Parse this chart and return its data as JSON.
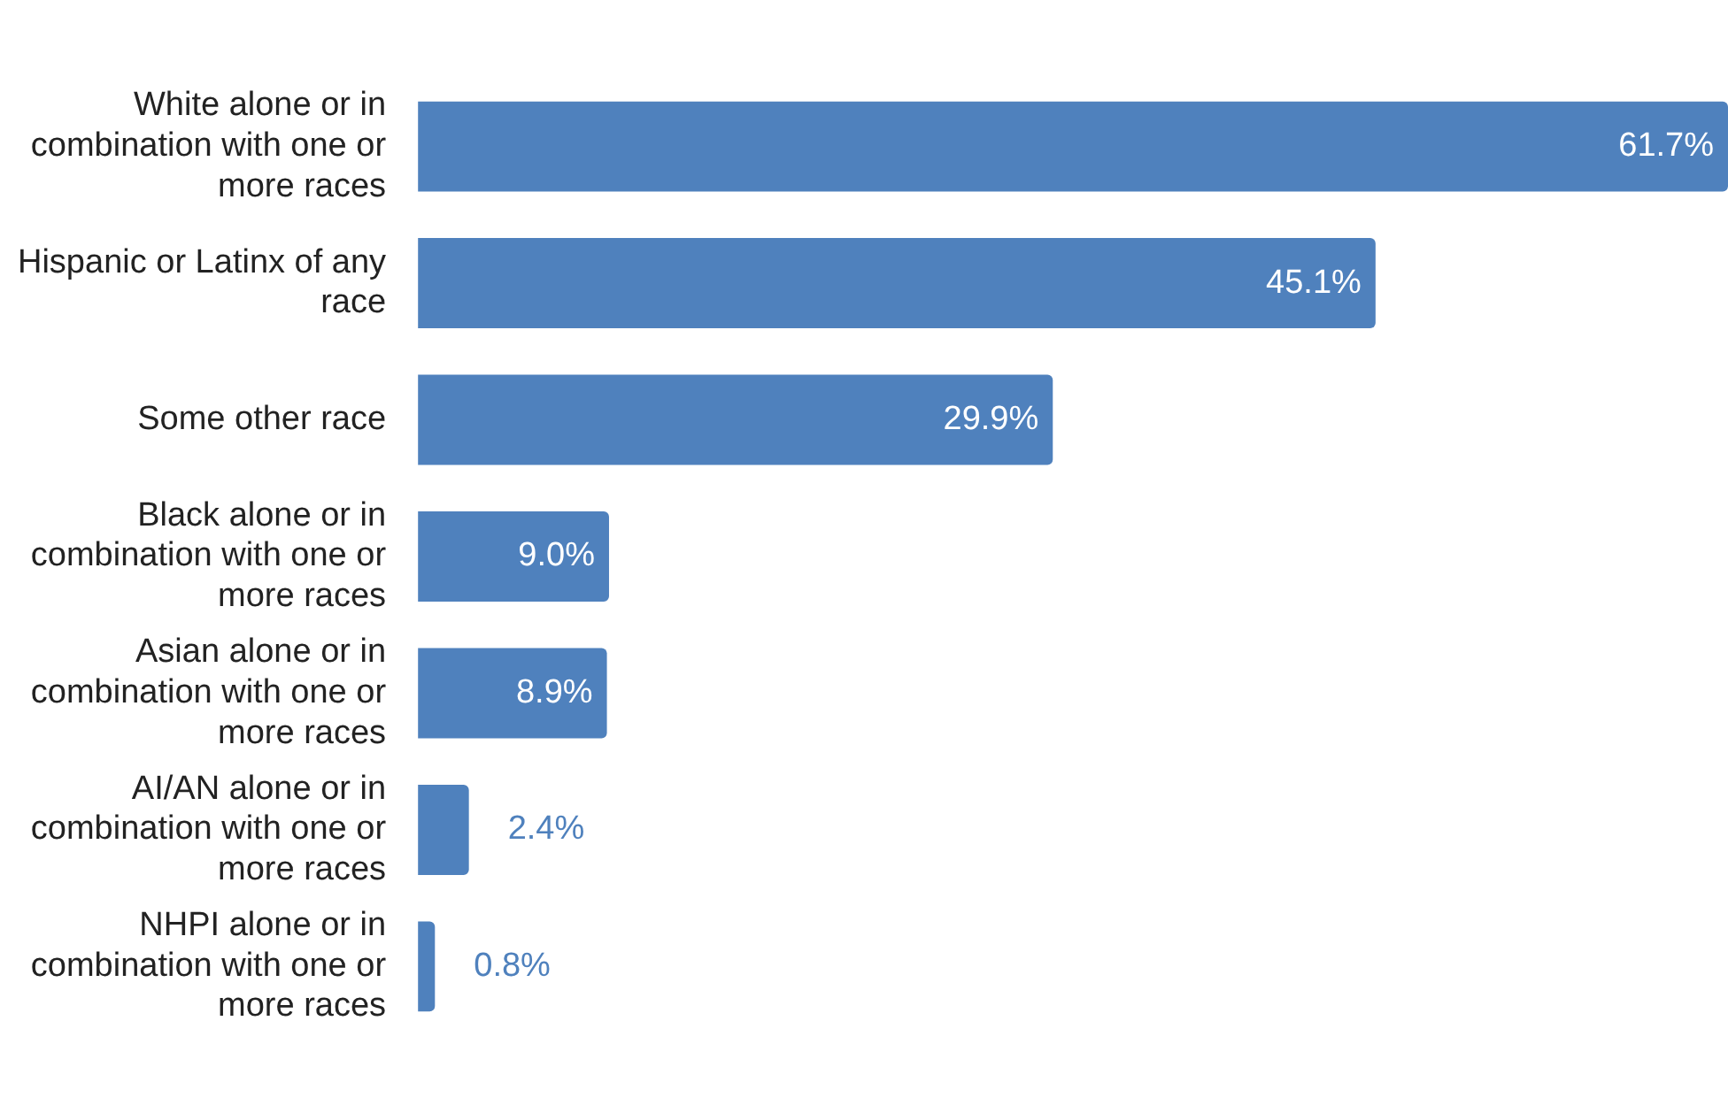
{
  "chart_data": {
    "type": "bar",
    "orientation": "horizontal",
    "categories": [
      "White alone or in combination with one or more races",
      "Hispanic or Latinx of any race",
      "Some other race",
      "Black alone or in combination with one or more races",
      "Asian alone or in combination with one or more races",
      "AI/AN alone or in combination with one or more races",
      "NHPI alone or in combination with one or more races"
    ],
    "values": [
      61.7,
      45.1,
      29.9,
      9.0,
      8.9,
      2.4,
      0.8
    ],
    "value_labels": [
      "61.7%",
      "45.1%",
      "29.9%",
      "9.0%",
      "8.9%",
      "2.4%",
      "0.8%"
    ],
    "color": "#4f81bd",
    "legend": false
  }
}
